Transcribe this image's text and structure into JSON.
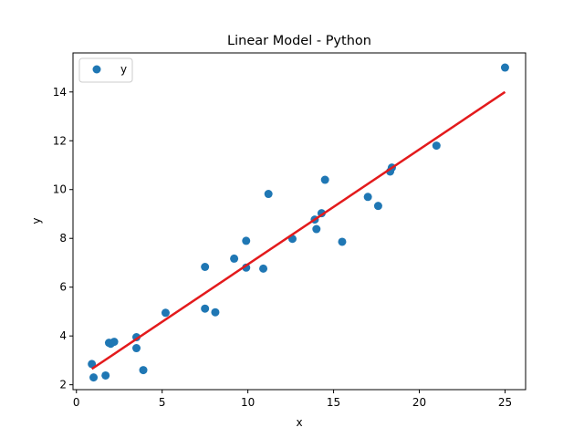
{
  "chart_data": {
    "type": "scatter",
    "title": "Linear Model - Python",
    "xlabel": "x",
    "ylabel": "y",
    "xlim": [
      -0.2,
      26.2
    ],
    "ylim": [
      1.8,
      15.6
    ],
    "xticks": [
      0,
      5,
      10,
      15,
      20,
      25
    ],
    "yticks": [
      2,
      4,
      6,
      8,
      10,
      12,
      14
    ],
    "grid": false,
    "legend_position": "top-left",
    "series": [
      {
        "name": "y",
        "kind": "scatter",
        "color": "#1f77b4",
        "points": [
          [
            0.9,
            2.85
          ],
          [
            1.0,
            2.3
          ],
          [
            1.7,
            2.38
          ],
          [
            1.9,
            3.72
          ],
          [
            2.0,
            3.68
          ],
          [
            2.2,
            3.76
          ],
          [
            3.5,
            3.95
          ],
          [
            3.5,
            3.5
          ],
          [
            3.9,
            2.6
          ],
          [
            5.2,
            4.95
          ],
          [
            7.5,
            6.83
          ],
          [
            7.5,
            5.12
          ],
          [
            8.1,
            4.97
          ],
          [
            9.2,
            7.17
          ],
          [
            9.9,
            7.9
          ],
          [
            9.9,
            6.8
          ],
          [
            10.9,
            6.76
          ],
          [
            11.2,
            9.82
          ],
          [
            12.6,
            7.98
          ],
          [
            13.9,
            8.77
          ],
          [
            14.0,
            8.38
          ],
          [
            14.3,
            9.03
          ],
          [
            14.5,
            10.4
          ],
          [
            15.5,
            7.86
          ],
          [
            17.0,
            9.7
          ],
          [
            17.6,
            9.33
          ],
          [
            18.3,
            10.74
          ],
          [
            18.4,
            10.9
          ],
          [
            21.0,
            11.8
          ],
          [
            25.0,
            15.0
          ]
        ]
      },
      {
        "name": "",
        "kind": "line",
        "color": "#e31a1c",
        "points": [
          [
            0.9,
            2.65
          ],
          [
            25.0,
            14.0
          ]
        ]
      }
    ]
  }
}
